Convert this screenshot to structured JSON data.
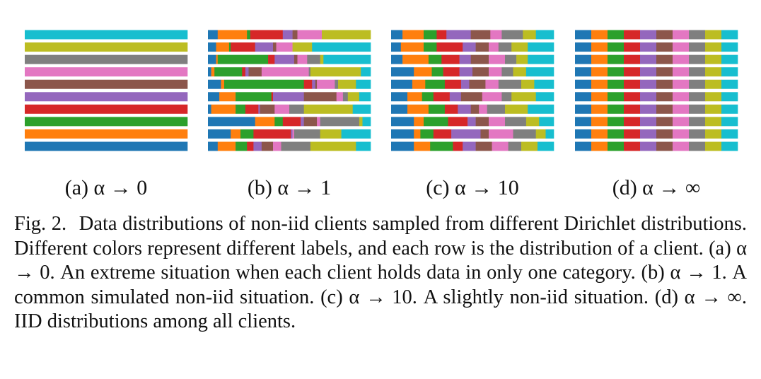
{
  "figure": {
    "label_colors": [
      "#1f77b4",
      "#ff7f0e",
      "#2ca02c",
      "#d62728",
      "#9467bd",
      "#8c564b",
      "#e377c2",
      "#7f7f7f",
      "#bcbd22",
      "#17becf"
    ],
    "panels": [
      {
        "id": "a",
        "label": "(a) α → 0",
        "rows": [
          [
            0,
            0,
            0,
            0,
            0,
            0,
            0,
            0,
            0,
            1
          ],
          [
            0,
            0,
            0,
            0,
            0,
            0,
            0,
            0,
            1,
            0
          ],
          [
            0,
            0,
            0,
            0,
            0,
            0,
            0,
            1,
            0,
            0
          ],
          [
            0,
            0,
            0,
            0,
            0,
            0,
            1,
            0,
            0,
            0
          ],
          [
            0,
            0,
            0,
            0,
            0,
            1,
            0,
            0,
            0,
            0
          ],
          [
            0,
            0,
            0,
            0,
            1,
            0,
            0,
            0,
            0,
            0
          ],
          [
            0,
            0,
            0,
            1,
            0,
            0,
            0,
            0,
            0,
            0
          ],
          [
            0,
            0,
            1,
            0,
            0,
            0,
            0,
            0,
            0,
            0
          ],
          [
            0,
            1,
            0,
            0,
            0,
            0,
            0,
            0,
            0,
            0
          ],
          [
            1,
            0,
            0,
            0,
            0,
            0,
            0,
            0,
            0,
            0
          ]
        ]
      },
      {
        "id": "b",
        "label": "(b) α → 1",
        "rows": [
          [
            0.06,
            0.18,
            0.02,
            0.2,
            0.06,
            0.03,
            0.15,
            0,
            0.3,
            0
          ],
          [
            0.05,
            0.08,
            0.01,
            0.15,
            0.11,
            0.02,
            0.1,
            0,
            0.12,
            0.36
          ],
          [
            0.05,
            0.01,
            0.31,
            0.04,
            0.12,
            0.02,
            0.06,
            0.08,
            0.02,
            0.29
          ],
          [
            0.02,
            0.02,
            0.17,
            0.02,
            0.02,
            0.08,
            0.29,
            0.01,
            0.31,
            0.06
          ],
          [
            0.08,
            0.02,
            0.49,
            0.05,
            0.02,
            0.01,
            0.11,
            0.02,
            0.11,
            0.09
          ],
          [
            0.07,
            0.1,
            0.22,
            0.01,
            0.19,
            0.2,
            0.04,
            0.03,
            0.07,
            0.07
          ],
          [
            0.02,
            0.15,
            0.06,
            0.08,
            0.01,
            0.09,
            0.09,
            0.09,
            0.3,
            0.11
          ],
          [
            0.29,
            0.12,
            0.05,
            0.11,
            0.02,
            0.08,
            0.02,
            0.24,
            0.02,
            0.05
          ],
          [
            0.14,
            0.06,
            0.08,
            0.23,
            0.01,
            0,
            0.01,
            0.16,
            0.13,
            0.18
          ],
          [
            0.06,
            0.11,
            0.07,
            0.04,
            0.05,
            0.07,
            0.05,
            0.18,
            0.28,
            0.09
          ]
        ]
      },
      {
        "id": "c",
        "label": "(c) α → 10",
        "rows": [
          [
            0.07,
            0.13,
            0.08,
            0.06,
            0.15,
            0.12,
            0.07,
            0.13,
            0.08,
            0.11
          ],
          [
            0.06,
            0.14,
            0.08,
            0.16,
            0.08,
            0.08,
            0.06,
            0.08,
            0.1,
            0.16
          ],
          [
            0.07,
            0.16,
            0.08,
            0.11,
            0.07,
            0.11,
            0.1,
            0.07,
            0.07,
            0.16
          ],
          [
            0.14,
            0.11,
            0.07,
            0.1,
            0.08,
            0.1,
            0.08,
            0.07,
            0.08,
            0.17
          ],
          [
            0.13,
            0.08,
            0.12,
            0.1,
            0.05,
            0.1,
            0.08,
            0.14,
            0.08,
            0.12
          ],
          [
            0.1,
            0.09,
            0.07,
            0.1,
            0.07,
            0.13,
            0.12,
            0.06,
            0.15,
            0.11
          ],
          [
            0.1,
            0.13,
            0.1,
            0.08,
            0.08,
            0.05,
            0.05,
            0.11,
            0.14,
            0.16
          ],
          [
            0.14,
            0.06,
            0.15,
            0.12,
            0.05,
            0.08,
            0.1,
            0.13,
            0.08,
            0.09
          ],
          [
            0.14,
            0.04,
            0.08,
            0.11,
            0.18,
            0.05,
            0.15,
            0.14,
            0.06,
            0.05
          ],
          [
            0.14,
            0.1,
            0.14,
            0.06,
            0.08,
            0.1,
            0.1,
            0.08,
            0.1,
            0.1
          ]
        ]
      },
      {
        "id": "d",
        "label": "(d) α → ∞",
        "rows": [
          [
            0.1,
            0.1,
            0.1,
            0.1,
            0.1,
            0.1,
            0.1,
            0.1,
            0.1,
            0.1
          ],
          [
            0.1,
            0.1,
            0.1,
            0.1,
            0.1,
            0.1,
            0.1,
            0.1,
            0.1,
            0.1
          ],
          [
            0.1,
            0.1,
            0.1,
            0.1,
            0.1,
            0.1,
            0.1,
            0.1,
            0.1,
            0.1
          ],
          [
            0.1,
            0.1,
            0.1,
            0.1,
            0.1,
            0.1,
            0.1,
            0.1,
            0.1,
            0.1
          ],
          [
            0.1,
            0.1,
            0.1,
            0.1,
            0.1,
            0.1,
            0.1,
            0.1,
            0.1,
            0.1
          ],
          [
            0.1,
            0.1,
            0.1,
            0.1,
            0.1,
            0.1,
            0.1,
            0.1,
            0.1,
            0.1
          ],
          [
            0.1,
            0.1,
            0.1,
            0.1,
            0.1,
            0.1,
            0.1,
            0.1,
            0.1,
            0.1
          ],
          [
            0.1,
            0.1,
            0.1,
            0.1,
            0.1,
            0.1,
            0.1,
            0.1,
            0.1,
            0.1
          ],
          [
            0.1,
            0.1,
            0.1,
            0.1,
            0.1,
            0.1,
            0.1,
            0.1,
            0.1,
            0.1
          ],
          [
            0.1,
            0.1,
            0.1,
            0.1,
            0.1,
            0.1,
            0.1,
            0.1,
            0.1,
            0.1
          ]
        ]
      }
    ]
  },
  "caption": {
    "number": "Fig. 2.",
    "text": "Data distributions of non-iid clients sampled from different Dirichlet distributions. Different colors represent different labels, and each row is the distribution of a client. (a) α → 0. An extreme situation when each client holds data in only one category. (b) α → 1. A common simulated non-iid situation. (c) α → 10. A slightly non-iid situation. (d) α → ∞. IID distributions among all clients."
  }
}
